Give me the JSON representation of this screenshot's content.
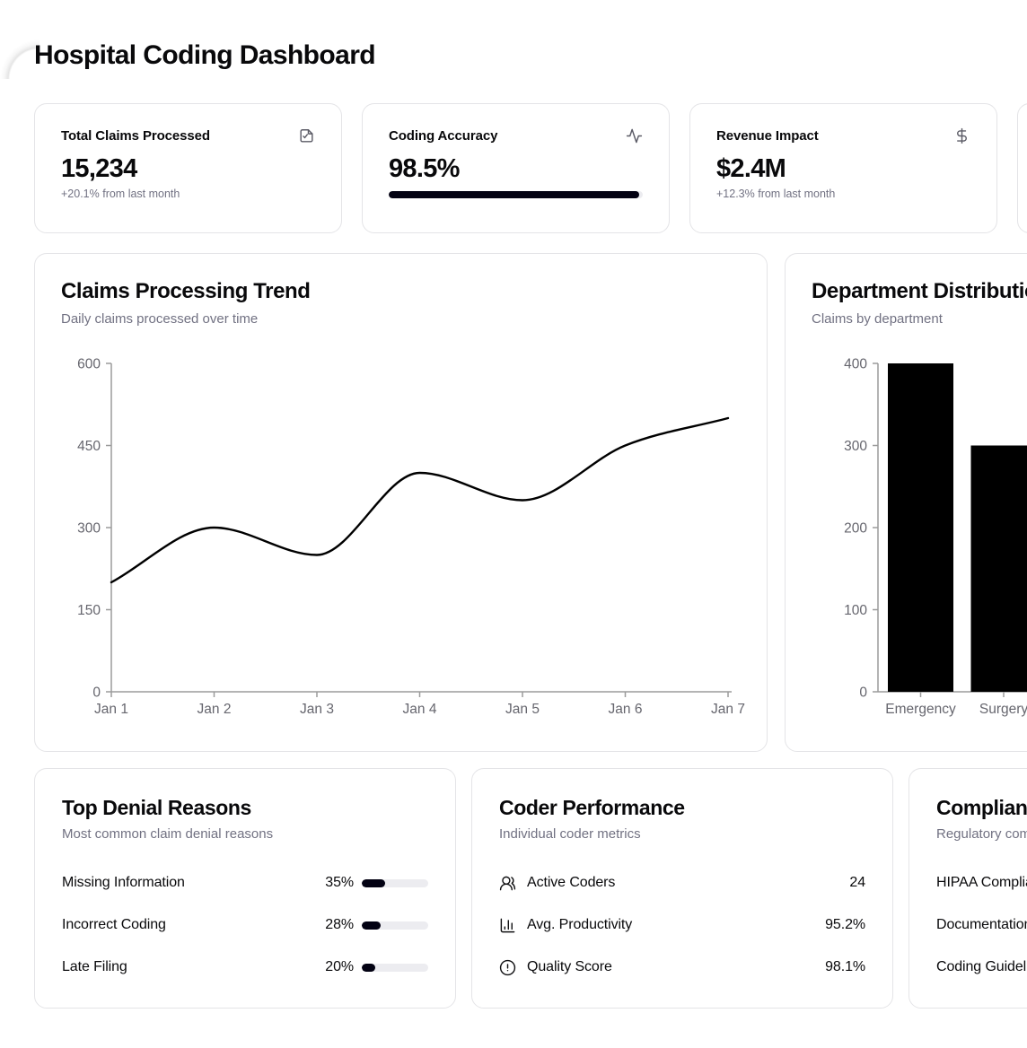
{
  "page": {
    "title": "Hospital Coding Dashboard"
  },
  "accent_colors": {
    "text": "#09090b",
    "muted": "#717182",
    "border": "#e4e4e7",
    "fill": "#030213",
    "track": "#ececf0"
  },
  "stats": [
    {
      "label": "Total Claims Processed",
      "icon": "file-check-icon",
      "value": "15,234",
      "delta": "+20.1% from last month"
    },
    {
      "label": "Coding Accuracy",
      "icon": "activity-icon",
      "value": "98.5%",
      "progress_pct": 98.5
    },
    {
      "label": "Revenue Impact",
      "icon": "dollar-sign-icon",
      "value": "$2.4M",
      "delta": "+12.3% from last month"
    }
  ],
  "chart_data": [
    {
      "type": "line",
      "title": "Claims Processing Trend",
      "subtitle": "Daily claims processed over time",
      "x": [
        "Jan 1",
        "Jan 2",
        "Jan 3",
        "Jan 4",
        "Jan 5",
        "Jan 6",
        "Jan 7"
      ],
      "values": [
        200,
        300,
        250,
        400,
        350,
        450,
        500
      ],
      "xlabel": "",
      "ylabel": "",
      "ylim": [
        0,
        600
      ],
      "yticks": [
        0,
        150,
        300,
        450,
        600
      ],
      "grid": false,
      "legend": false,
      "line_color": "#000000",
      "curve": "monotone"
    },
    {
      "type": "bar",
      "title": "Department Distribution",
      "subtitle": "Claims by department",
      "categories": [
        "Emergency",
        "Surgery"
      ],
      "values": [
        400,
        300
      ],
      "xlabel": "",
      "ylabel": "",
      "ylim": [
        0,
        400
      ],
      "yticks": [
        0,
        100,
        200,
        300,
        400
      ],
      "grid": false,
      "legend": false,
      "bar_color": "#000000",
      "clipped_at_right_edge": true
    }
  ],
  "denials": {
    "title": "Top Denial Reasons",
    "subtitle": "Most common claim denial reasons",
    "items": [
      {
        "label": "Missing Information",
        "pct_label": "35%",
        "pct": 35
      },
      {
        "label": "Incorrect Coding",
        "pct_label": "28%",
        "pct": 28
      },
      {
        "label": "Late Filing",
        "pct_label": "20%",
        "pct": 20
      }
    ]
  },
  "coders": {
    "title": "Coder Performance",
    "subtitle": "Individual coder metrics",
    "rows": [
      {
        "icon": "users-icon",
        "label": "Active Coders",
        "value": "24"
      },
      {
        "icon": "bar-chart-icon",
        "label": "Avg. Productivity",
        "value": "95.2%"
      },
      {
        "icon": "alert-circle-icon",
        "label": "Quality Score",
        "value": "98.1%"
      }
    ]
  },
  "compliance": {
    "title": "Compliance Status",
    "subtitle": "Regulatory compliance overview",
    "rows": [
      {
        "label": "HIPAA Compliance"
      },
      {
        "label": "Documentation"
      },
      {
        "label": "Coding Guidelines"
      }
    ]
  }
}
